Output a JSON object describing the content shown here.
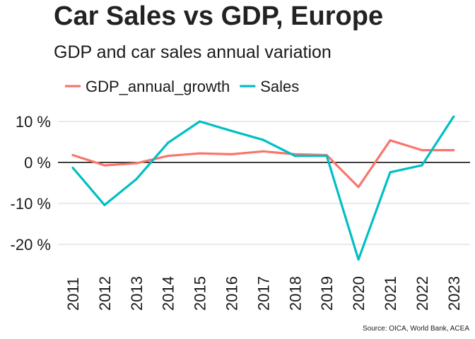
{
  "chart_data": {
    "type": "line",
    "title": "Car Sales vs GDP, Europe",
    "subtitle": "GDP and car sales annual variation",
    "caption": "Source: OICA, World Bank, ACEA",
    "xlabel": "",
    "ylabel": "",
    "categories": [
      "2011",
      "2012",
      "2013",
      "2014",
      "2015",
      "2016",
      "2017",
      "2018",
      "2019",
      "2020",
      "2021",
      "2022",
      "2023"
    ],
    "y_ticks": [
      {
        "value": 10,
        "label": "10 %"
      },
      {
        "value": 0,
        "label": "0 %"
      },
      {
        "value": -10,
        "label": "-10 %"
      },
      {
        "value": -20,
        "label": "-20 %"
      }
    ],
    "ylim": [
      -24.5,
      11.8
    ],
    "grid": "horizontal",
    "legend_position": "top",
    "series": [
      {
        "name": "GDP_annual_growth",
        "color": "#F8766D",
        "values": [
          1.8,
          -0.7,
          -0.2,
          1.6,
          2.2,
          2.0,
          2.7,
          2.0,
          1.8,
          -6.0,
          5.4,
          3.0,
          3.0
        ]
      },
      {
        "name": "Sales",
        "color": "#00BFC4",
        "values": [
          -1.3,
          -10.4,
          -4.1,
          4.8,
          10.0,
          7.7,
          5.5,
          1.6,
          1.6,
          -23.7,
          -2.4,
          -0.7,
          11.2
        ]
      }
    ]
  }
}
